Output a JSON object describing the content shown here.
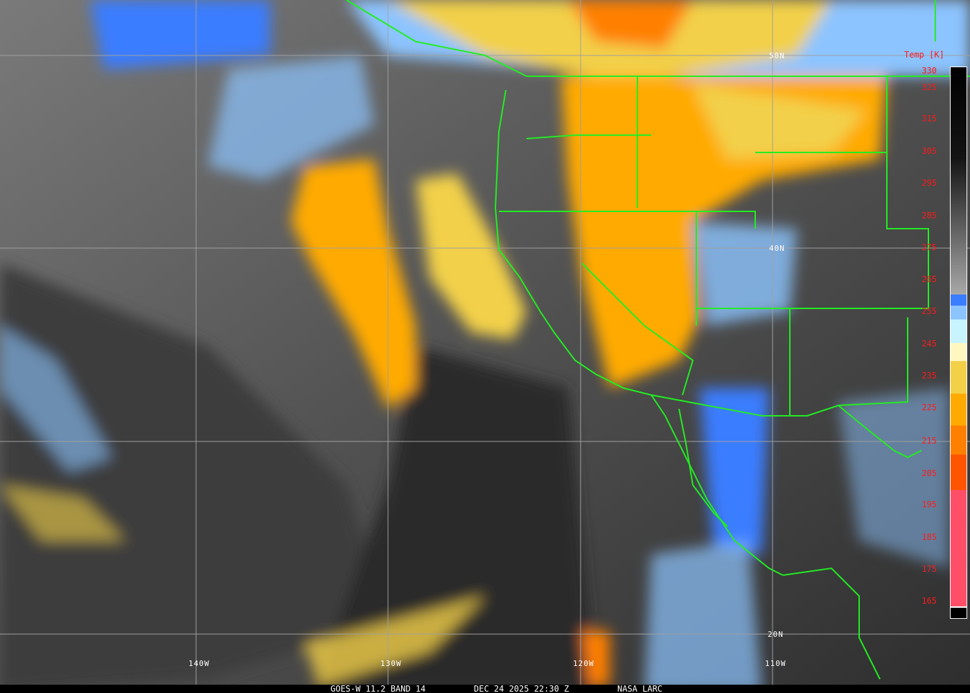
{
  "caption": {
    "product": "GOES-W 11.2 BAND 14",
    "datetime": "DEC 24 2025 22:30 Z",
    "credit": "NASA LARC"
  },
  "lat_labels": [
    "50N",
    "40N",
    "20N"
  ],
  "lon_labels": [
    "140W",
    "130W",
    "120W",
    "110W"
  ],
  "colorbar": {
    "title": "Temp [K]",
    "labels": [
      "330",
      "325",
      "315",
      "305",
      "295",
      "285",
      "275",
      "265",
      "255",
      "245",
      "235",
      "225",
      "215",
      "205",
      "195",
      "185",
      "175",
      "165"
    ],
    "colors": {
      "warm_gradient_top": "#000000",
      "warm_gradient_bottom": "#a8a8a8",
      "blue": "#3a7dff",
      "light_blue": "#8cc4ff",
      "cyan": "#c8f4ff",
      "pale_yellow": "#fff7c0",
      "yellow": "#f2d048",
      "orange_yellow": "#ffaa00",
      "orange": "#ff8000",
      "red_orange": "#ff5500",
      "pink": "#ff4f68"
    }
  },
  "overlay_colors": {
    "borders": "#22ee22",
    "grid": "#a0a0a0"
  }
}
